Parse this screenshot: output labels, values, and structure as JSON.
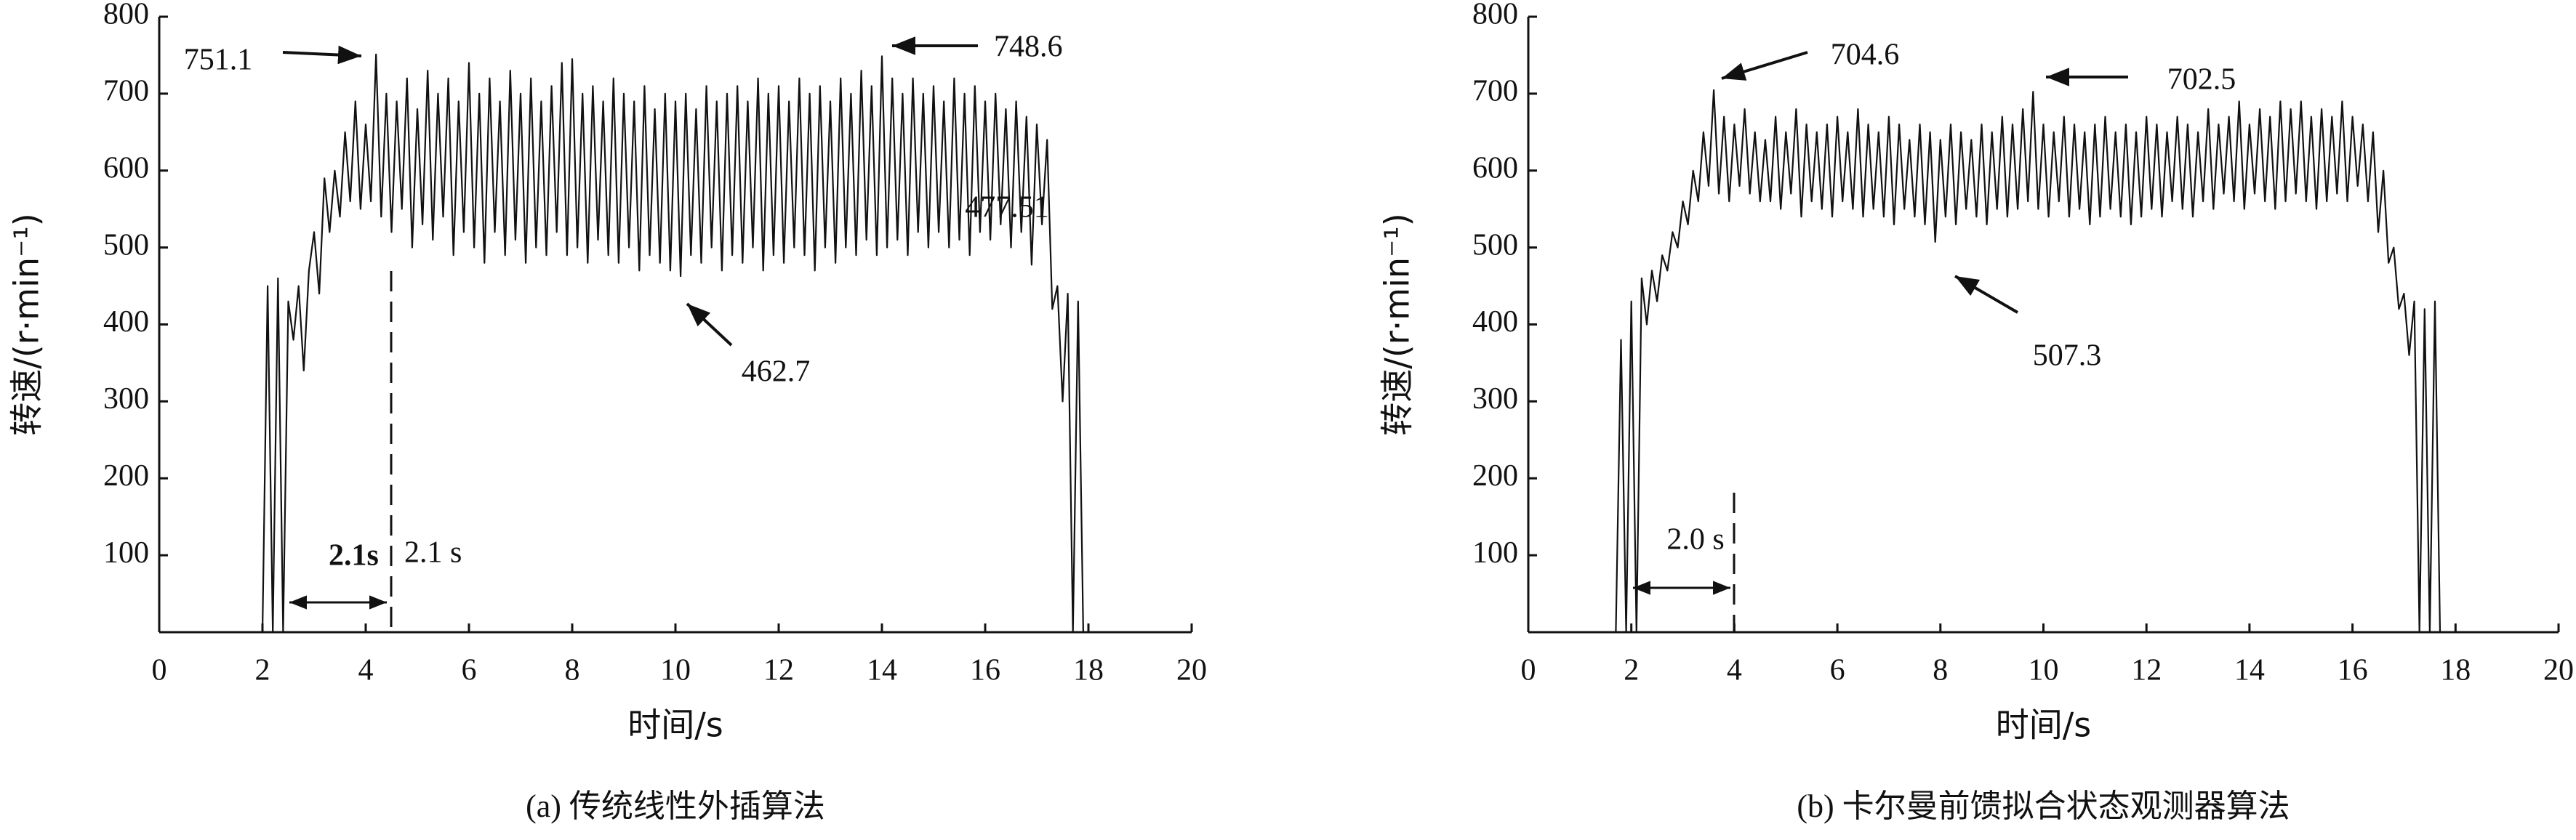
{
  "chart_data": [
    {
      "type": "line",
      "xlabel": "时间/s",
      "ylabel": "转速/(r·min⁻¹)",
      "caption": "(a) 传统线性外插算法",
      "x": [
        0,
        2,
        2.1,
        2.2,
        2.3,
        2.4,
        2.5,
        2.6,
        2.7,
        2.8,
        2.9,
        3,
        3.1,
        3.2,
        3.3,
        3.4,
        3.5,
        3.6,
        3.7,
        3.8,
        3.9,
        4,
        4.1,
        4.2,
        4.3,
        4.4,
        4.5,
        4.6,
        4.7,
        4.8,
        4.9,
        5,
        5.1,
        5.2,
        5.3,
        5.4,
        5.5,
        5.6,
        5.7,
        5.8,
        5.9,
        6,
        6.1,
        6.2,
        6.3,
        6.4,
        6.5,
        6.6,
        6.7,
        6.8,
        6.9,
        7,
        7.1,
        7.2,
        7.3,
        7.4,
        7.5,
        7.6,
        7.7,
        7.8,
        7.9,
        8,
        8.1,
        8.2,
        8.3,
        8.4,
        8.5,
        8.6,
        8.7,
        8.8,
        8.9,
        9,
        9.1,
        9.2,
        9.3,
        9.4,
        9.5,
        9.6,
        9.7,
        9.8,
        9.9,
        10,
        10.1,
        10.2,
        10.3,
        10.4,
        10.5,
        10.6,
        10.7,
        10.8,
        10.9,
        11,
        11.1,
        11.2,
        11.3,
        11.4,
        11.5,
        11.6,
        11.7,
        11.8,
        11.9,
        12,
        12.1,
        12.2,
        12.3,
        12.4,
        12.5,
        12.6,
        12.7,
        12.8,
        12.9,
        13,
        13.1,
        13.2,
        13.3,
        13.4,
        13.5,
        13.6,
        13.7,
        13.8,
        13.9,
        14,
        14.1,
        14.2,
        14.3,
        14.4,
        14.5,
        14.6,
        14.7,
        14.8,
        14.9,
        15,
        15.1,
        15.2,
        15.3,
        15.4,
        15.5,
        15.6,
        15.7,
        15.8,
        15.9,
        16,
        16.1,
        16.2,
        16.3,
        16.4,
        16.5,
        16.6,
        16.7,
        16.8,
        16.9,
        17,
        17.1,
        17.2,
        17.3,
        17.4,
        17.5,
        17.6,
        17.7,
        17.8,
        17.9,
        18,
        20
      ],
      "series": [
        {
          "color": "#111111",
          "values": [
            0,
            0,
            450,
            0,
            460,
            0,
            430,
            380,
            450,
            340,
            470,
            520,
            440,
            590,
            520,
            600,
            540,
            650,
            560,
            690,
            550,
            660,
            560,
            751.1,
            540,
            700,
            520,
            690,
            550,
            720,
            500,
            680,
            530,
            730,
            510,
            700,
            540,
            720,
            490,
            690,
            520,
            740,
            500,
            700,
            480,
            720,
            520,
            690,
            490,
            730,
            510,
            700,
            480,
            720,
            500,
            690,
            490,
            710,
            520,
            740,
            490,
            745,
            500,
            700,
            480,
            710,
            510,
            690,
            490,
            720,
            480,
            700,
            500,
            690,
            470,
            710,
            490,
            680,
            480,
            700,
            470,
            690,
            462.7,
            700,
            490,
            680,
            480,
            710,
            500,
            690,
            470,
            700,
            490,
            710,
            480,
            690,
            500,
            720,
            470,
            700,
            490,
            710,
            480,
            690,
            500,
            720,
            490,
            700,
            470,
            710,
            500,
            690,
            480,
            720,
            500,
            700,
            490,
            730,
            510,
            710,
            490,
            748.6,
            500,
            720,
            510,
            700,
            490,
            720,
            520,
            700,
            500,
            710,
            520,
            690,
            500,
            720,
            510,
            700,
            490,
            710,
            520,
            690,
            510,
            700,
            530,
            680,
            500,
            690,
            520,
            670,
            477.51,
            660,
            530,
            640,
            420,
            450,
            300,
            440,
            0,
            430,
            0,
            0,
            0
          ]
        }
      ],
      "xlim": [
        0,
        20
      ],
      "ylim": [
        0,
        800
      ],
      "xticks": [
        0,
        2,
        4,
        6,
        8,
        10,
        12,
        14,
        16,
        18,
        20
      ],
      "yticks": [
        100,
        200,
        300,
        400,
        500,
        600,
        700,
        800
      ],
      "annotations": [
        "751.1",
        "748.6",
        "462.7",
        "477.51",
        "2.1s",
        "2.1 s"
      ]
    },
    {
      "type": "line",
      "xlabel": "时间/s",
      "ylabel": "转速/(r·min⁻¹)",
      "caption": "(b) 卡尔曼前馈拟合状态观测器算法",
      "x": [
        0,
        1.7,
        1.8,
        1.9,
        2,
        2.1,
        2.2,
        2.3,
        2.4,
        2.5,
        2.6,
        2.7,
        2.8,
        2.9,
        3,
        3.1,
        3.2,
        3.3,
        3.4,
        3.5,
        3.6,
        3.7,
        3.8,
        3.9,
        4,
        4.1,
        4.2,
        4.3,
        4.4,
        4.5,
        4.6,
        4.7,
        4.8,
        4.9,
        5,
        5.1,
        5.2,
        5.3,
        5.4,
        5.5,
        5.6,
        5.7,
        5.8,
        5.9,
        6,
        6.1,
        6.2,
        6.3,
        6.4,
        6.5,
        6.6,
        6.7,
        6.8,
        6.9,
        7,
        7.1,
        7.2,
        7.3,
        7.4,
        7.5,
        7.6,
        7.7,
        7.8,
        7.9,
        8,
        8.1,
        8.2,
        8.3,
        8.4,
        8.5,
        8.6,
        8.7,
        8.8,
        8.9,
        9,
        9.1,
        9.2,
        9.3,
        9.4,
        9.5,
        9.6,
        9.7,
        9.8,
        9.9,
        10,
        10.1,
        10.2,
        10.3,
        10.4,
        10.5,
        10.6,
        10.7,
        10.8,
        10.9,
        11,
        11.1,
        11.2,
        11.3,
        11.4,
        11.5,
        11.6,
        11.7,
        11.8,
        11.9,
        12,
        12.1,
        12.2,
        12.3,
        12.4,
        12.5,
        12.6,
        12.7,
        12.8,
        12.9,
        13,
        13.1,
        13.2,
        13.3,
        13.4,
        13.5,
        13.6,
        13.7,
        13.8,
        13.9,
        14,
        14.1,
        14.2,
        14.3,
        14.4,
        14.5,
        14.6,
        14.7,
        14.8,
        14.9,
        15,
        15.1,
        15.2,
        15.3,
        15.4,
        15.5,
        15.6,
        15.7,
        15.8,
        15.9,
        16,
        16.1,
        16.2,
        16.3,
        16.4,
        16.5,
        16.6,
        16.7,
        16.8,
        16.9,
        17,
        17.1,
        17.2,
        17.3,
        17.4,
        17.5,
        17.6,
        17.7,
        20
      ],
      "series": [
        {
          "color": "#111111",
          "values": [
            0,
            0,
            380,
            0,
            430,
            0,
            460,
            400,
            470,
            430,
            490,
            470,
            520,
            500,
            560,
            530,
            600,
            560,
            650,
            580,
            704.6,
            570,
            670,
            560,
            660,
            580,
            680,
            570,
            650,
            560,
            640,
            560,
            670,
            550,
            650,
            570,
            680,
            540,
            660,
            560,
            650,
            550,
            660,
            540,
            670,
            560,
            650,
            550,
            680,
            540,
            660,
            550,
            650,
            540,
            670,
            530,
            660,
            550,
            640,
            540,
            660,
            530,
            650,
            507.3,
            640,
            540,
            660,
            530,
            650,
            550,
            640,
            540,
            660,
            530,
            650,
            550,
            670,
            540,
            660,
            550,
            680,
            560,
            702.5,
            550,
            660,
            540,
            650,
            560,
            670,
            540,
            660,
            550,
            650,
            530,
            660,
            540,
            670,
            550,
            650,
            540,
            660,
            530,
            650,
            540,
            670,
            550,
            660,
            540,
            650,
            560,
            670,
            550,
            660,
            540,
            650,
            560,
            680,
            550,
            660,
            570,
            670,
            560,
            690,
            550,
            660,
            570,
            680,
            560,
            670,
            550,
            690,
            560,
            680,
            570,
            690,
            560,
            670,
            550,
            680,
            560,
            670,
            570,
            690,
            560,
            670,
            580,
            660,
            560,
            650,
            520,
            600,
            480,
            500,
            420,
            440,
            360,
            430,
            0,
            420,
            0,
            430,
            0,
            0
          ]
        }
      ],
      "xlim": [
        0,
        20
      ],
      "ylim": [
        0,
        800
      ],
      "xticks": [
        0,
        2,
        4,
        6,
        8,
        10,
        12,
        14,
        16,
        18,
        20
      ],
      "yticks": [
        100,
        200,
        300,
        400,
        500,
        600,
        700,
        800
      ],
      "annotations": [
        "704.6",
        "702.5",
        "507.3",
        "2.0 s"
      ]
    }
  ]
}
